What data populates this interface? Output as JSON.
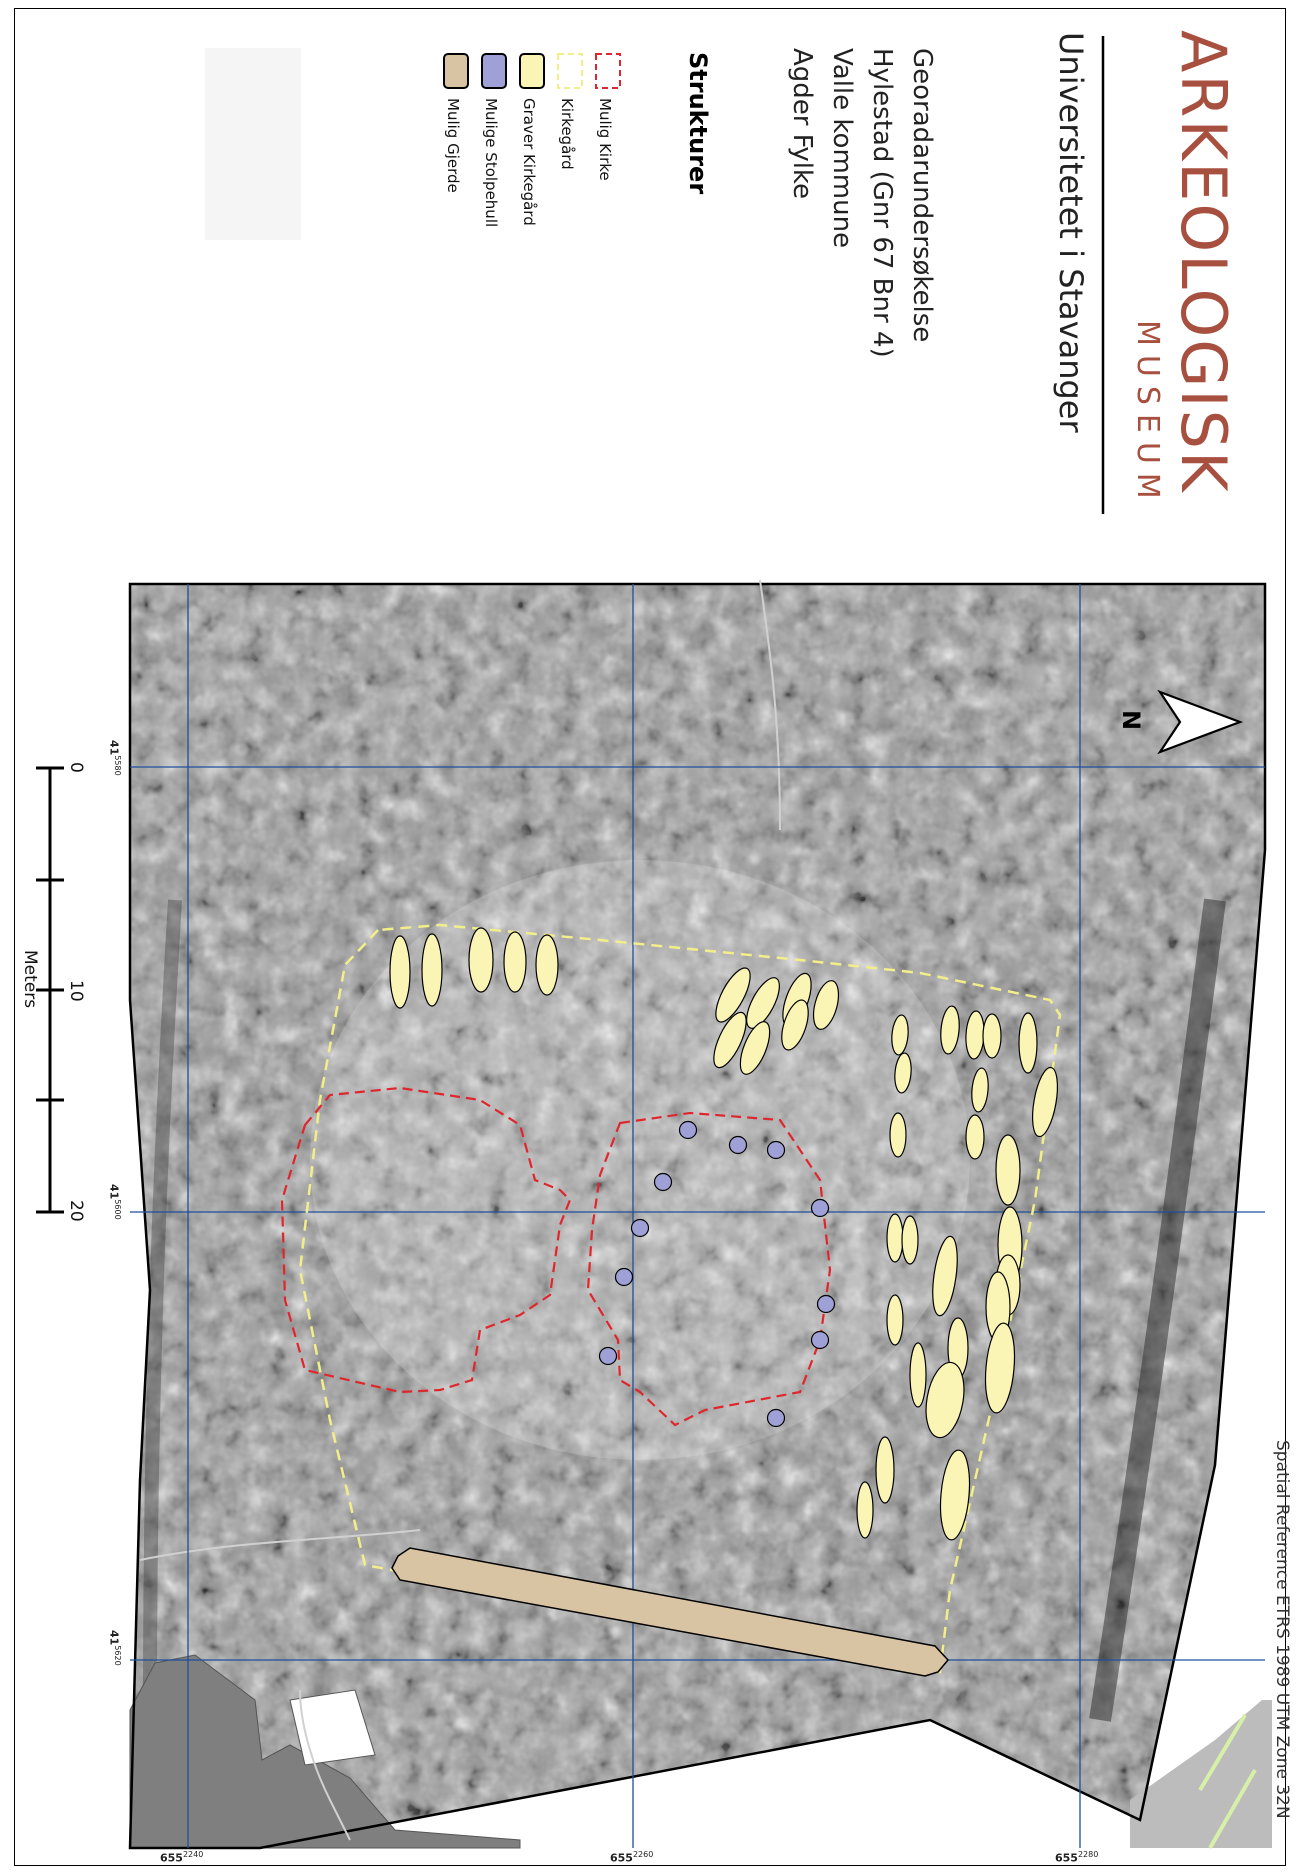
{
  "header": {
    "logo_main": "ARKEOLOGISK",
    "logo_sub": "MUSEUM",
    "institution": "Universitetet i Stavanger",
    "survey_title": "Georadarundersøkelse",
    "location_line": "Hylestad (Gnr 67 Bnr 4)",
    "municipality": "Valle kommune",
    "county": "Agder Fylke"
  },
  "legend": {
    "title": "Strukturer",
    "items": [
      {
        "label": "Mulig Kirke",
        "color": "#e0262d",
        "style": "dashed"
      },
      {
        "label": "Kirkegård",
        "color": "#f2ee8a",
        "style": "dashed"
      },
      {
        "label": "Graver Kirkegård",
        "color": "#fbf5b5",
        "style": "fill"
      },
      {
        "label": "Mulige Stolpehull",
        "color": "#9ea0d6",
        "style": "fill"
      },
      {
        "label": "Mulig Gjerde",
        "color": "#d8c3a3",
        "style": "fill"
      }
    ]
  },
  "map": {
    "spatial_reference": "Spatial Reference ETRS 1989 UTM Zone 32N",
    "north_label": "N",
    "northing_labels": [
      {
        "major": "41",
        "minor": "5580"
      },
      {
        "major": "41",
        "minor": "5600"
      },
      {
        "major": "41",
        "minor": "5620"
      }
    ],
    "easting_labels": [
      {
        "major": "655",
        "minor": "2240"
      },
      {
        "major": "655",
        "minor": "2260"
      },
      {
        "major": "655",
        "minor": "2280"
      }
    ],
    "scale_bar": {
      "ticks": [
        "0",
        "10",
        "20"
      ],
      "unit": "Meters"
    },
    "colors": {
      "grid": "#1e4f9a",
      "church_outline": "#e0262d",
      "graveyard_outline": "#f2ee8a",
      "grave_fill": "#fbf5b5",
      "posthole_fill": "#9ea0d6",
      "fence_fill": "#d8c3a3",
      "building_fill": "#7f7f7f"
    }
  }
}
